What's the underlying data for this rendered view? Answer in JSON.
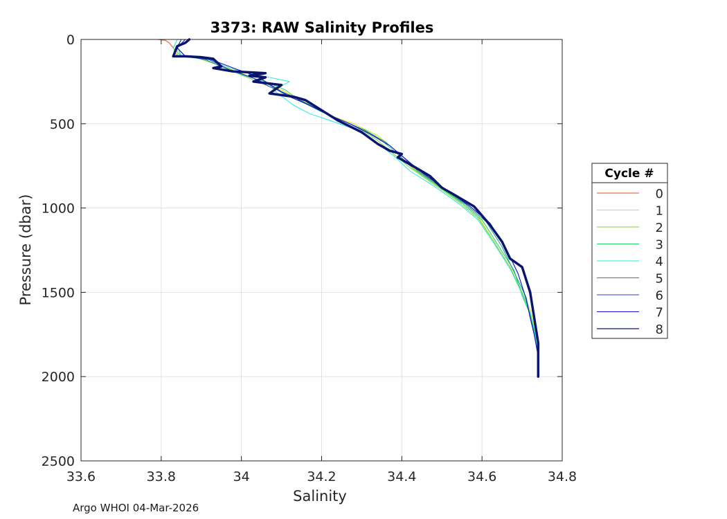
{
  "chart_data": {
    "type": "line",
    "title": "3373: RAW Salinity Profiles",
    "xlabel": "Salinity",
    "ylabel": "Pressure (dbar)",
    "xlim": [
      33.6,
      34.8
    ],
    "ylim": [
      0,
      2500
    ],
    "y_reversed": true,
    "grid": true,
    "xticks": [
      "33.6",
      "33.8",
      "34",
      "34.2",
      "34.4",
      "34.6",
      "34.8"
    ],
    "yticks": [
      "0",
      "500",
      "1000",
      "1500",
      "2000",
      "2500"
    ],
    "legend": {
      "title": "Cycle #",
      "placement": "right"
    },
    "series": [
      {
        "name": "0",
        "color": "#d9541a",
        "width": 1,
        "x": [
          33.79,
          33.81,
          33.82,
          33.83,
          33.84
        ],
        "y": [
          0,
          5,
          20,
          50,
          100
        ]
      },
      {
        "name": "1",
        "color": "#e0e000",
        "width": 1,
        "x": [
          33.84,
          33.83,
          33.84,
          33.9,
          33.94,
          34.0,
          34.05,
          34.1,
          34.14,
          34.18,
          34.22,
          34.28,
          34.34,
          34.38,
          34.42,
          34.48,
          34.54,
          34.59,
          34.63,
          34.67,
          34.7,
          34.72,
          34.73,
          34.74,
          34.74
        ],
        "y": [
          0,
          50,
          100,
          110,
          150,
          200,
          250,
          300,
          350,
          400,
          450,
          500,
          570,
          650,
          750,
          850,
          950,
          1050,
          1200,
          1350,
          1500,
          1600,
          1700,
          1850,
          2000
        ]
      },
      {
        "name": "2",
        "color": "#7fd63a",
        "width": 1,
        "x": [
          33.86,
          33.84,
          33.84,
          33.89,
          33.94,
          34.0,
          34.05,
          34.1,
          34.15,
          34.2,
          34.24,
          34.29,
          34.34,
          34.38,
          34.42,
          34.48,
          34.54,
          34.59,
          34.63,
          34.67,
          34.7,
          34.72,
          34.73,
          34.74,
          34.74
        ],
        "y": [
          0,
          50,
          100,
          110,
          150,
          210,
          260,
          310,
          360,
          420,
          470,
          520,
          600,
          680,
          760,
          860,
          960,
          1060,
          1200,
          1350,
          1500,
          1620,
          1720,
          1860,
          2000
        ]
      },
      {
        "name": "3",
        "color": "#24d56a",
        "width": 1,
        "x": [
          33.85,
          33.84,
          33.85,
          33.9,
          33.95,
          34.0,
          34.06,
          34.11,
          34.15,
          34.2,
          34.25,
          34.3,
          34.35,
          34.39,
          34.43,
          34.49,
          34.55,
          34.6,
          34.64,
          34.68,
          34.7,
          34.72,
          34.73,
          34.74,
          34.74
        ],
        "y": [
          0,
          40,
          100,
          110,
          160,
          210,
          250,
          300,
          370,
          430,
          480,
          530,
          600,
          680,
          770,
          870,
          970,
          1070,
          1220,
          1370,
          1520,
          1630,
          1730,
          1870,
          2000
        ]
      },
      {
        "name": "4",
        "color": "#22e8e0",
        "width": 1,
        "x": [
          33.84,
          33.83,
          33.85,
          33.92,
          33.97,
          34.04,
          34.12,
          34.08,
          34.13,
          34.17,
          34.22,
          34.28,
          34.33,
          34.38,
          34.42,
          34.48,
          34.54,
          34.59,
          34.63,
          34.67,
          34.7,
          34.72,
          34.73,
          34.74,
          34.74
        ],
        "y": [
          0,
          50,
          100,
          120,
          170,
          210,
          250,
          300,
          390,
          440,
          480,
          530,
          600,
          690,
          780,
          870,
          970,
          1070,
          1210,
          1360,
          1510,
          1620,
          1720,
          1860,
          2000
        ]
      },
      {
        "name": "5",
        "color": "#14958a",
        "width": 1,
        "x": [
          33.85,
          33.84,
          33.86,
          33.91,
          33.96,
          34.02,
          34.07,
          34.11,
          34.16,
          34.21,
          34.26,
          34.31,
          34.36,
          34.4,
          34.44,
          34.5,
          34.56,
          34.61,
          34.65,
          34.68,
          34.71,
          34.72,
          34.73,
          34.74,
          34.74
        ],
        "y": [
          0,
          50,
          100,
          120,
          170,
          220,
          270,
          330,
          380,
          440,
          490,
          540,
          610,
          690,
          780,
          880,
          980,
          1080,
          1230,
          1380,
          1530,
          1640,
          1740,
          1880,
          2000
        ]
      },
      {
        "name": "6",
        "color": "#2a3ad6",
        "width": 1,
        "x": [
          33.85,
          33.84,
          33.86,
          33.92,
          33.97,
          34.03,
          34.07,
          34.12,
          34.17,
          34.22,
          34.27,
          34.32,
          34.37,
          34.41,
          34.45,
          34.51,
          34.57,
          34.62,
          34.66,
          34.69,
          34.71,
          34.72,
          34.73,
          34.74,
          34.74
        ],
        "y": [
          0,
          50,
          100,
          120,
          180,
          230,
          280,
          330,
          390,
          450,
          500,
          560,
          630,
          710,
          790,
          890,
          990,
          1090,
          1240,
          1390,
          1540,
          1650,
          1750,
          1880,
          2000
        ]
      },
      {
        "name": "7",
        "color": "#1010c8",
        "width": 1,
        "x": [
          33.86,
          33.84,
          33.86,
          33.92,
          33.98,
          34.04,
          34.08,
          34.12,
          34.17,
          34.22,
          34.27,
          34.32,
          34.37,
          34.41,
          34.45,
          34.51,
          34.57,
          34.62,
          34.66,
          34.69,
          34.71,
          34.72,
          34.73,
          34.74,
          34.74
        ],
        "y": [
          0,
          50,
          100,
          115,
          170,
          220,
          280,
          340,
          390,
          450,
          500,
          560,
          630,
          710,
          790,
          890,
          990,
          1090,
          1240,
          1390,
          1540,
          1650,
          1750,
          1880,
          2000
        ]
      },
      {
        "name": "8",
        "color": "#0a1470",
        "width": 3.5,
        "x": [
          33.87,
          33.86,
          33.84,
          33.83,
          33.86,
          33.9,
          33.93,
          33.95,
          33.93,
          33.98,
          34.06,
          34.02,
          34.06,
          34.03,
          34.1,
          34.07,
          34.13,
          34.16,
          34.2,
          34.24,
          34.3,
          34.34,
          34.37,
          34.4,
          34.39,
          34.42,
          34.47,
          34.5,
          34.53,
          34.58,
          34.62,
          34.65,
          34.67,
          34.7,
          34.72,
          34.73,
          34.74,
          34.74,
          34.74
        ],
        "y": [
          0,
          20,
          40,
          100,
          100,
          105,
          115,
          160,
          170,
          190,
          200,
          215,
          225,
          250,
          270,
          320,
          340,
          360,
          420,
          480,
          550,
          620,
          660,
          680,
          700,
          740,
          810,
          880,
          920,
          990,
          1100,
          1200,
          1300,
          1350,
          1500,
          1650,
          1800,
          1900,
          2000
        ]
      }
    ]
  },
  "footer": {
    "text": "Argo WHOI 04-Mar-2026"
  }
}
